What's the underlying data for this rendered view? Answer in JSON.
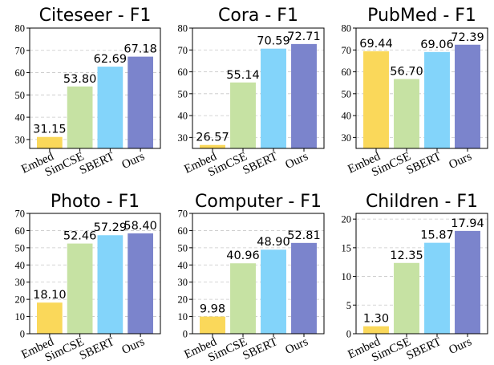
{
  "colors": [
    "#fad85a",
    "#c6e2a3",
    "#83d4fa",
    "#7b84cc"
  ],
  "chart_data": [
    {
      "type": "bar",
      "title": "Citeseer - F1",
      "categories": [
        "Embed",
        "SimCSE",
        "SBERT",
        "Ours"
      ],
      "values": [
        31.15,
        53.8,
        62.69,
        67.18
      ],
      "value_labels": [
        "31.15",
        "53.80",
        "62.69",
        "67.18"
      ],
      "ylim": [
        26,
        80
      ],
      "yticks": [
        30,
        40,
        50,
        60,
        70,
        80
      ],
      "grid": true
    },
    {
      "type": "bar",
      "title": "Cora - F1",
      "categories": [
        "Embed",
        "SimCSE",
        "SBERT",
        "Ours"
      ],
      "values": [
        26.57,
        55.14,
        70.59,
        72.71
      ],
      "value_labels": [
        "26.57",
        "55.14",
        "70.59",
        "72.71"
      ],
      "ylim": [
        25,
        80
      ],
      "yticks": [
        30,
        40,
        50,
        60,
        70,
        80
      ],
      "grid": true
    },
    {
      "type": "bar",
      "title": "PubMed - F1",
      "categories": [
        "Embed",
        "SimCSE",
        "SBERT",
        "Ours"
      ],
      "values": [
        69.44,
        56.7,
        69.06,
        72.39
      ],
      "value_labels": [
        "69.44",
        "56.70",
        "69.06",
        "72.39"
      ],
      "ylim": [
        25,
        80
      ],
      "yticks": [
        30,
        40,
        50,
        60,
        70,
        80
      ],
      "grid": true
    },
    {
      "type": "bar",
      "title": "Photo - F1",
      "categories": [
        "Embed",
        "SimCSE",
        "SBERT",
        "Ours"
      ],
      "values": [
        18.1,
        52.46,
        57.29,
        58.4
      ],
      "value_labels": [
        "18.10",
        "52.46",
        "57.29",
        "58.40"
      ],
      "ylim": [
        0,
        70
      ],
      "yticks": [
        0,
        10,
        20,
        30,
        40,
        50,
        60,
        70
      ],
      "grid": true
    },
    {
      "type": "bar",
      "title": "Computer - F1",
      "categories": [
        "Embed",
        "SimCSE",
        "SBERT",
        "Ours"
      ],
      "values": [
        9.98,
        40.96,
        48.9,
        52.81
      ],
      "value_labels": [
        "9.98",
        "40.96",
        "48.90",
        "52.81"
      ],
      "ylim": [
        0,
        70
      ],
      "yticks": [
        0,
        10,
        20,
        30,
        40,
        50,
        60,
        70
      ],
      "grid": true
    },
    {
      "type": "bar",
      "title": "Children - F1",
      "categories": [
        "Embed",
        "SimCSE",
        "SBERT",
        "Ours"
      ],
      "values": [
        1.3,
        12.35,
        15.87,
        17.94
      ],
      "value_labels": [
        "1.30",
        "12.35",
        "15.87",
        "17.94"
      ],
      "ylim": [
        0,
        21
      ],
      "yticks": [
        0,
        5,
        10,
        15,
        20
      ],
      "grid": true
    }
  ]
}
